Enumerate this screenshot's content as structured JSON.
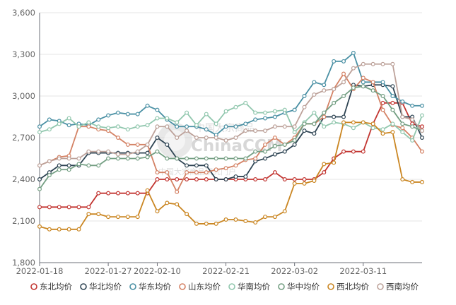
{
  "watermark": {
    "brand": "ChinaCCM",
    "brand_cn": "中国大宗商品",
    "subtitle": "中国大宗商品研究门户"
  },
  "chart_data": {
    "type": "line",
    "title": "",
    "xlabel": "",
    "ylabel": "",
    "ylim": [
      1800,
      3600
    ],
    "yticks": [
      1800,
      2100,
      2400,
      2700,
      3000,
      3300,
      3600
    ],
    "ytick_labels": [
      "1,800",
      "2,100",
      "2,400",
      "2,700",
      "3,000",
      "3,300",
      "3,600"
    ],
    "x": [
      "2022-01-18",
      "2022-01-19",
      "2022-01-20",
      "2022-01-21",
      "2022-01-24",
      "2022-01-25",
      "2022-01-26",
      "2022-01-27",
      "2022-01-28",
      "2022-02-07",
      "2022-02-08",
      "2022-02-09",
      "2022-02-10",
      "2022-02-11",
      "2022-02-14",
      "2022-02-15",
      "2022-02-16",
      "2022-02-17",
      "2022-02-18",
      "2022-02-21",
      "2022-02-22",
      "2022-02-23",
      "2022-02-24",
      "2022-02-25",
      "2022-02-28",
      "2022-03-01",
      "2022-03-02",
      "2022-03-03",
      "2022-03-04",
      "2022-03-07",
      "2022-03-08",
      "2022-03-09",
      "2022-03-10",
      "2022-03-11",
      "2022-03-14",
      "2022-03-15",
      "2022-03-16",
      "2022-03-17",
      "2022-03-18",
      "2022-03-21"
    ],
    "xtick_labels": [
      "2022-01-18",
      "2022-01-27",
      "2022-02-10",
      "2022-02-21",
      "2022-03-02",
      "2022-03-11"
    ],
    "grid": true,
    "legend_position": "bottom",
    "series": [
      {
        "name": "东北均价",
        "color": "#c23531",
        "values": [
          2200,
          2200,
          2200,
          2200,
          2200,
          2200,
          2300,
          2300,
          2300,
          2300,
          2300,
          2300,
          2400,
          2400,
          2400,
          2400,
          2400,
          2400,
          2400,
          2400,
          2400,
          2400,
          2400,
          2400,
          2450,
          2400,
          2400,
          2400,
          2400,
          2450,
          2550,
          2600,
          2600,
          2600,
          2800,
          2950,
          2950,
          2950,
          2800,
          2780
        ]
      },
      {
        "name": "华北均价",
        "color": "#2f4554",
        "values": [
          2400,
          2450,
          2500,
          2500,
          2500,
          2590,
          2590,
          2590,
          2590,
          2590,
          2590,
          2590,
          2700,
          2650,
          2550,
          2500,
          2500,
          2500,
          2400,
          2400,
          2420,
          2420,
          2530,
          2550,
          2580,
          2600,
          2650,
          2750,
          2730,
          2850,
          2850,
          2850,
          3080,
          3070,
          3080,
          3080,
          3070,
          2850,
          2850,
          2700
        ]
      },
      {
        "name": "华东均价",
        "color": "#4a90a4",
        "values": [
          2780,
          2830,
          2820,
          2790,
          2800,
          2790,
          2830,
          2860,
          2880,
          2870,
          2870,
          2930,
          2900,
          2830,
          2780,
          2780,
          2780,
          2760,
          2720,
          2780,
          2780,
          2800,
          2830,
          2840,
          2850,
          2880,
          2900,
          3000,
          3100,
          3080,
          3250,
          3250,
          3310,
          3100,
          3100,
          3100,
          3000,
          2960,
          2930,
          2930
        ]
      },
      {
        "name": "山东均价",
        "color": "#d48265",
        "values": [
          2500,
          2530,
          2560,
          2570,
          2780,
          2780,
          2760,
          2750,
          2700,
          2650,
          2650,
          2650,
          2450,
          2450,
          2310,
          2450,
          2450,
          2450,
          2470,
          2480,
          2500,
          2540,
          2550,
          2650,
          2700,
          2650,
          2700,
          2800,
          2800,
          2850,
          3050,
          3160,
          3050,
          3130,
          3100,
          2900,
          2790,
          2770,
          2700,
          2600
        ]
      },
      {
        "name": "华南均价",
        "color": "#91c7ae",
        "values": [
          2740,
          2760,
          2800,
          2840,
          2780,
          2810,
          2780,
          2770,
          2780,
          2760,
          2780,
          2790,
          2840,
          2840,
          2810,
          2880,
          2790,
          2870,
          2800,
          2890,
          2920,
          2950,
          2880,
          2880,
          2890,
          2900,
          2740,
          2810,
          2880,
          2780,
          2810,
          2800,
          2770,
          2810,
          2770,
          2760,
          2800,
          2740,
          2680,
          2860
        ]
      },
      {
        "name": "华中均价",
        "color": "#749f83",
        "values": [
          2330,
          2430,
          2470,
          2470,
          2510,
          2500,
          2500,
          2550,
          2550,
          2550,
          2550,
          2560,
          2600,
          2550,
          2550,
          2550,
          2550,
          2550,
          2550,
          2550,
          2550,
          2550,
          2600,
          2600,
          2640,
          2650,
          2680,
          2800,
          2800,
          2880,
          2950,
          3000,
          3060,
          3070,
          3040,
          3000,
          2900,
          2800,
          2780,
          2750
        ]
      },
      {
        "name": "西北均价",
        "color": "#ca8622",
        "values": [
          2060,
          2040,
          2040,
          2040,
          2040,
          2150,
          2150,
          2130,
          2130,
          2130,
          2130,
          2320,
          2170,
          2230,
          2220,
          2150,
          2080,
          2080,
          2080,
          2110,
          2110,
          2100,
          2090,
          2130,
          2130,
          2170,
          2370,
          2370,
          2390,
          2510,
          2520,
          2810,
          2810,
          2810,
          2800,
          2730,
          2740,
          2400,
          2380,
          2380
        ]
      },
      {
        "name": "西南均价",
        "color": "#bda29a",
        "values": [
          2500,
          2530,
          2550,
          2550,
          2550,
          2600,
          2600,
          2600,
          2580,
          2580,
          2600,
          2650,
          2780,
          2780,
          2700,
          2750,
          2700,
          2700,
          2700,
          2680,
          2700,
          2750,
          2750,
          2750,
          2780,
          2780,
          2780,
          2920,
          3010,
          3040,
          3050,
          3100,
          3200,
          3230,
          3230,
          3230,
          3230,
          2850,
          2830,
          2750
        ]
      }
    ]
  }
}
